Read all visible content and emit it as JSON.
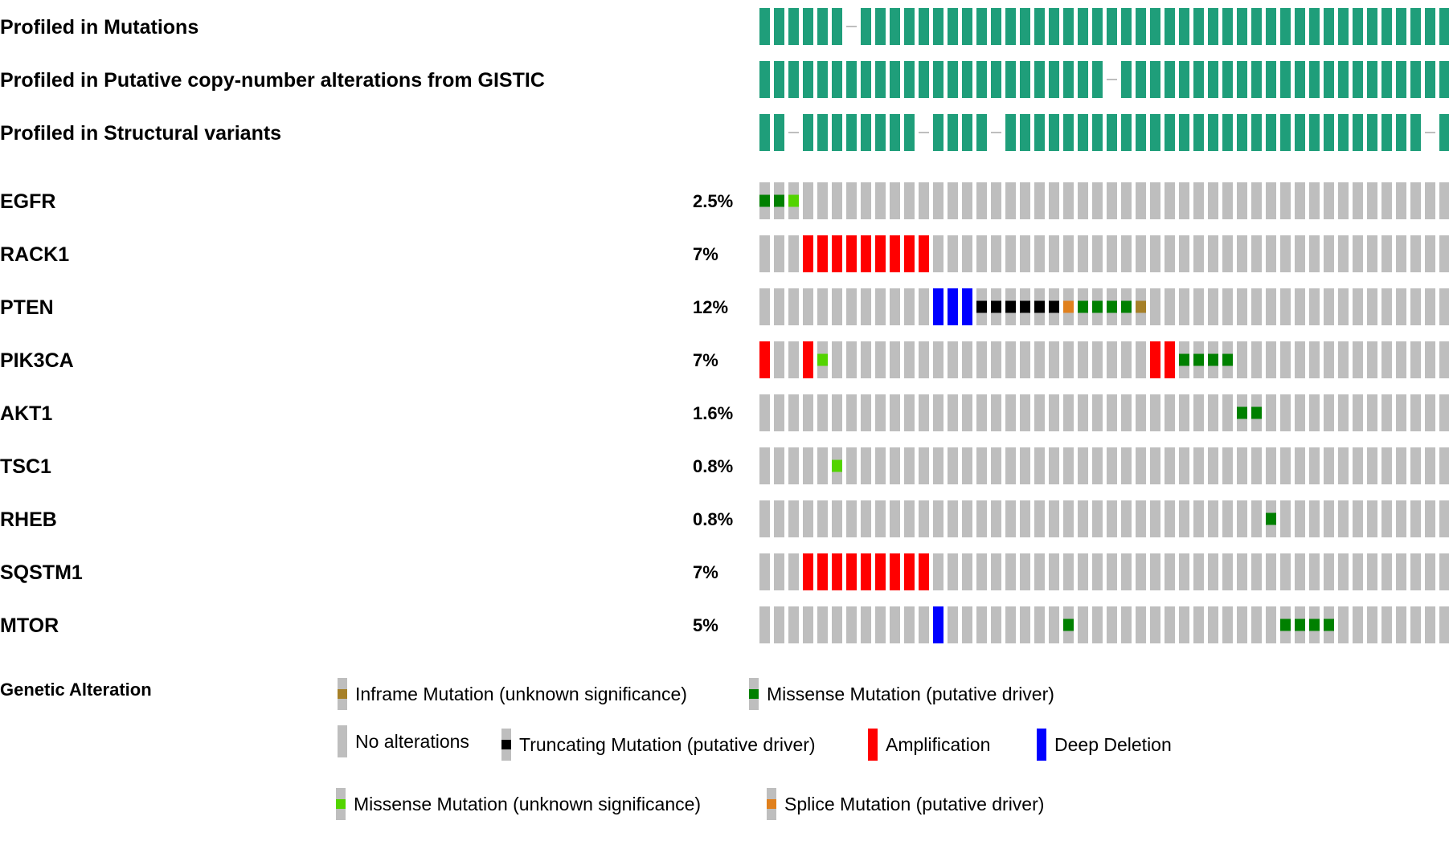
{
  "colors": {
    "profiled": "#1f9e7a",
    "not_profiled": "#bebebe",
    "no_alteration": "#bebebe",
    "amplification": "#ff0000",
    "deep_deletion": "#0000ff",
    "missense_driver": "#008000",
    "missense_unknown": "#53d400",
    "truncating_driver": "#000000",
    "inframe_unknown": "#a68028",
    "splice_driver": "#e0801d"
  },
  "chart_data": {
    "type": "oncoprint",
    "n_samples": 48,
    "profile_tracks": [
      {
        "label": "Profiled in Mutations",
        "not_profiled_samples": [
          6
        ]
      },
      {
        "label": "Profiled in Putative copy-number alterations from GISTIC",
        "not_profiled_samples": [
          24
        ]
      },
      {
        "label": "Profiled in Structural variants",
        "not_profiled_samples": [
          2,
          11,
          16,
          46
        ]
      }
    ],
    "genes": [
      {
        "gene": "EGFR",
        "percent": "2.5%",
        "alterations": [
          {
            "sample": 0,
            "type": "missense_driver"
          },
          {
            "sample": 1,
            "type": "missense_driver"
          },
          {
            "sample": 2,
            "type": "missense_unknown"
          }
        ]
      },
      {
        "gene": "RACK1",
        "percent": "7%",
        "alterations": [
          {
            "sample": 3,
            "type": "amplification"
          },
          {
            "sample": 4,
            "type": "amplification"
          },
          {
            "sample": 5,
            "type": "amplification"
          },
          {
            "sample": 6,
            "type": "amplification"
          },
          {
            "sample": 7,
            "type": "amplification"
          },
          {
            "sample": 8,
            "type": "amplification"
          },
          {
            "sample": 9,
            "type": "amplification"
          },
          {
            "sample": 10,
            "type": "amplification"
          },
          {
            "sample": 11,
            "type": "amplification"
          }
        ]
      },
      {
        "gene": "PTEN",
        "percent": "12%",
        "alterations": [
          {
            "sample": 12,
            "type": "deep_deletion"
          },
          {
            "sample": 13,
            "type": "deep_deletion"
          },
          {
            "sample": 14,
            "type": "deep_deletion"
          },
          {
            "sample": 15,
            "type": "truncating_driver"
          },
          {
            "sample": 16,
            "type": "truncating_driver"
          },
          {
            "sample": 17,
            "type": "truncating_driver"
          },
          {
            "sample": 18,
            "type": "truncating_driver"
          },
          {
            "sample": 19,
            "type": "truncating_driver"
          },
          {
            "sample": 20,
            "type": "truncating_driver"
          },
          {
            "sample": 21,
            "type": "splice_driver"
          },
          {
            "sample": 22,
            "type": "missense_driver"
          },
          {
            "sample": 23,
            "type": "missense_driver"
          },
          {
            "sample": 24,
            "type": "missense_driver"
          },
          {
            "sample": 25,
            "type": "missense_driver"
          },
          {
            "sample": 26,
            "type": "inframe_unknown"
          }
        ]
      },
      {
        "gene": "PIK3CA",
        "percent": "7%",
        "alterations": [
          {
            "sample": 0,
            "type": "amplification"
          },
          {
            "sample": 3,
            "type": "amplification"
          },
          {
            "sample": 4,
            "type": "missense_unknown"
          },
          {
            "sample": 27,
            "type": "amplification"
          },
          {
            "sample": 28,
            "type": "amplification"
          },
          {
            "sample": 29,
            "type": "missense_driver"
          },
          {
            "sample": 30,
            "type": "missense_driver"
          },
          {
            "sample": 31,
            "type": "missense_driver"
          },
          {
            "sample": 32,
            "type": "missense_driver"
          }
        ]
      },
      {
        "gene": "AKT1",
        "percent": "1.6%",
        "alterations": [
          {
            "sample": 33,
            "type": "missense_driver"
          },
          {
            "sample": 34,
            "type": "missense_driver"
          }
        ]
      },
      {
        "gene": "TSC1",
        "percent": "0.8%",
        "alterations": [
          {
            "sample": 5,
            "type": "missense_unknown"
          }
        ]
      },
      {
        "gene": "RHEB",
        "percent": "0.8%",
        "alterations": [
          {
            "sample": 35,
            "type": "missense_driver"
          }
        ]
      },
      {
        "gene": "SQSTM1",
        "percent": "7%",
        "alterations": [
          {
            "sample": 3,
            "type": "amplification"
          },
          {
            "sample": 4,
            "type": "amplification"
          },
          {
            "sample": 5,
            "type": "amplification"
          },
          {
            "sample": 6,
            "type": "amplification"
          },
          {
            "sample": 7,
            "type": "amplification"
          },
          {
            "sample": 8,
            "type": "amplification"
          },
          {
            "sample": 9,
            "type": "amplification"
          },
          {
            "sample": 10,
            "type": "amplification"
          },
          {
            "sample": 11,
            "type": "amplification"
          }
        ]
      },
      {
        "gene": "MTOR",
        "percent": "5%",
        "alterations": [
          {
            "sample": 12,
            "type": "deep_deletion"
          },
          {
            "sample": 21,
            "type": "missense_driver"
          },
          {
            "sample": 36,
            "type": "missense_driver"
          },
          {
            "sample": 37,
            "type": "missense_driver"
          },
          {
            "sample": 38,
            "type": "missense_driver"
          },
          {
            "sample": 39,
            "type": "missense_driver"
          }
        ]
      }
    ]
  },
  "legend": {
    "title": "Genetic Alteration",
    "inframe_unknown": "Inframe Mutation (unknown significance)",
    "missense_driver": "Missense Mutation (putative driver)",
    "no_alterations": "No alterations",
    "truncating_driver": "Truncating Mutation (putative driver)",
    "amplification": "Amplification",
    "deep_deletion": "Deep Deletion",
    "missense_unknown": "Missense Mutation (unknown significance)",
    "splice_driver": "Splice Mutation (putative driver)"
  }
}
